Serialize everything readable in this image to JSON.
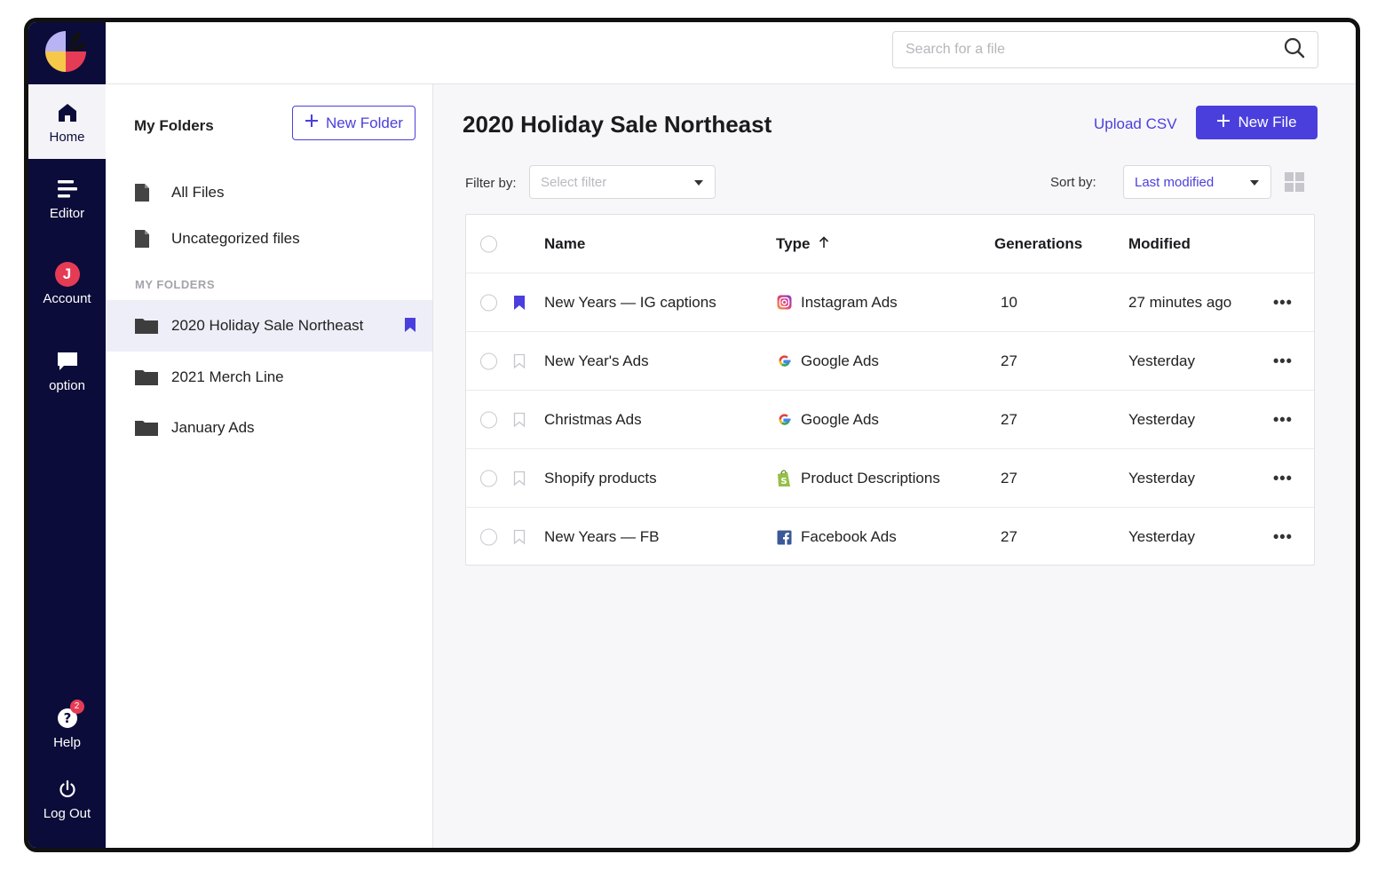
{
  "search": {
    "placeholder": "Search for a file"
  },
  "rail": {
    "items": [
      {
        "label": "Home",
        "icon": "home-icon"
      },
      {
        "label": "Editor",
        "icon": "editor-icon"
      },
      {
        "label": "Account",
        "icon": "account-avatar",
        "avatar_letter": "J"
      },
      {
        "label": "option",
        "icon": "chat-icon"
      },
      {
        "label": "Help",
        "icon": "help-icon",
        "badge": "2"
      },
      {
        "label": "Log Out",
        "icon": "power-icon"
      }
    ]
  },
  "folders": {
    "title": "My Folders",
    "new_folder_label": "New Folder",
    "items": [
      {
        "label": "All Files",
        "icon": "file-icon"
      },
      {
        "label": "Uncategorized files",
        "icon": "file-icon"
      }
    ],
    "section_label": "MY FOLDERS",
    "folders": [
      {
        "label": "2020 Holiday Sale Northeast",
        "icon": "folder-icon",
        "bookmarked": true
      },
      {
        "label": "2021 Merch Line",
        "icon": "folder-icon"
      },
      {
        "label": "January Ads",
        "icon": "folder-icon"
      }
    ]
  },
  "main": {
    "title": "2020 Holiday Sale Northeast",
    "upload_label": "Upload CSV",
    "new_file_label": "New File",
    "filter_label": "Filter by:",
    "filter_placeholder": "Select filter",
    "sort_label": "Sort by:",
    "sort_value": "Last modified"
  },
  "table": {
    "headers": {
      "name": "Name",
      "type": "Type",
      "generations": "Generations",
      "modified": "Modified"
    },
    "rows": [
      {
        "name": "New Years — IG captions",
        "type": "Instagram Ads",
        "type_icon": "instagram-icon",
        "generations": "10",
        "modified": "27 minutes ago",
        "bookmarked": true
      },
      {
        "name": "New Year's Ads",
        "type": "Google Ads",
        "type_icon": "google-icon",
        "generations": "27",
        "modified": "Yesterday",
        "bookmarked": false
      },
      {
        "name": "Christmas Ads",
        "type": "Google Ads",
        "type_icon": "google-icon",
        "generations": "27",
        "modified": "Yesterday",
        "bookmarked": false
      },
      {
        "name": "Shopify products",
        "type": "Product Descriptions",
        "type_icon": "shopify-icon",
        "generations": "27",
        "modified": "Yesterday",
        "bookmarked": false
      },
      {
        "name": "New Years — FB",
        "type": "Facebook Ads",
        "type_icon": "facebook-icon",
        "generations": "27",
        "modified": "Yesterday",
        "bookmarked": false
      }
    ]
  },
  "colors": {
    "accent": "#4a3fdc",
    "rail": "#0c0c3a",
    "badge": "#e63b55"
  }
}
